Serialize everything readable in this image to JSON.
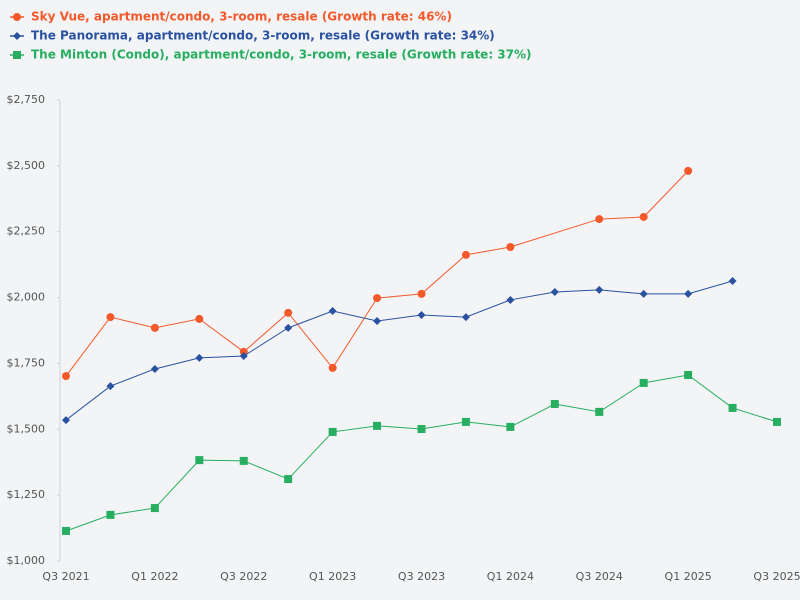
{
  "chart_data": {
    "type": "line",
    "categories": [
      "Q3 2021",
      null,
      "Q1 2022",
      null,
      "Q3 2022",
      null,
      "Q1 2023",
      null,
      "Q3 2023",
      null,
      "Q1 2024",
      null,
      "Q3 2024",
      null,
      "Q1 2025",
      null,
      "Q3 2025"
    ],
    "series": [
      {
        "name": "Sky Vue, apartment/condo, 3-room, resale (Growth rate: 46%)",
        "color": "#f4592a",
        "marker": "circle",
        "values": [
          1702,
          1926,
          1885,
          1919,
          1794,
          1942,
          1733,
          1998,
          2014,
          2162,
          2192,
          null,
          2298,
          2306,
          2481,
          null,
          null
        ]
      },
      {
        "name": "The Panorama, apartment/condo, 3-room, resale (Growth rate: 34%)",
        "color": "#2a52a0",
        "marker": "diamond",
        "values": [
          1535,
          1664,
          1729,
          1771,
          1778,
          1885,
          1949,
          1911,
          1934,
          1926,
          1991,
          2021,
          2029,
          2014,
          2014,
          2063,
          null
        ]
      },
      {
        "name": "The Minton (Condo), apartment/condo, 3-room, resale (Growth rate: 37%)",
        "color": "#27ae60",
        "marker": "square",
        "values": [
          1114,
          1175,
          1201,
          1383,
          1380,
          1311,
          1490,
          1513,
          1501,
          1528,
          1509,
          1596,
          1566,
          1676,
          1706,
          1581,
          1528
        ]
      }
    ],
    "ylim": [
      1000,
      2750
    ],
    "yticks": [
      {
        "value": 1000,
        "label": "$1,000"
      },
      {
        "value": 1250,
        "label": "$1,250"
      },
      {
        "value": 1500,
        "label": "$1,500"
      },
      {
        "value": 1750,
        "label": "$1,750"
      },
      {
        "value": 2000,
        "label": "$2,000"
      },
      {
        "value": 2250,
        "label": "$2,250"
      },
      {
        "value": 2500,
        "label": "$2,500"
      },
      {
        "value": 2750,
        "label": "$2,750"
      }
    ],
    "legend": "top-left"
  }
}
